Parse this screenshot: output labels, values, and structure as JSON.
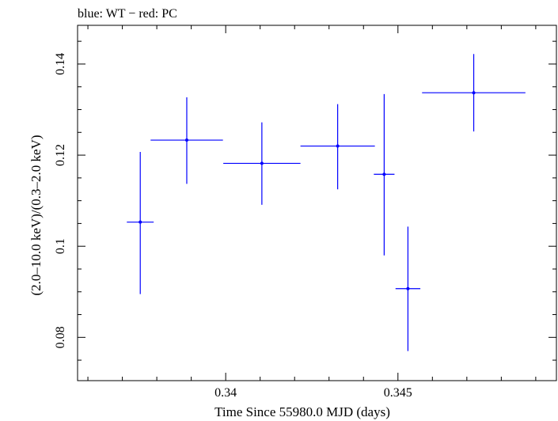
{
  "chart_data": {
    "type": "scatter",
    "title": "blue: WT − red: PC",
    "xlabel": "Time Since 55980.0 MJD (days)",
    "ylabel": "(2.0–10.0 keV)/(0.3–2.0 keV)",
    "xlim": [
      0.3357,
      0.3496
    ],
    "ylim": [
      0.0705,
      0.1485
    ],
    "x_ticks": [
      0.34,
      0.345
    ],
    "x_tick_labels": [
      "0.34",
      "0.345"
    ],
    "y_ticks": [
      0.08,
      0.1,
      0.12,
      0.14
    ],
    "y_tick_labels": [
      "0.08",
      "0.1",
      "0.12",
      "0.14"
    ],
    "grid": false,
    "series": [
      {
        "name": "WT",
        "color": "#0000ff",
        "points": [
          {
            "x": 0.33752,
            "xerr": 0.00039,
            "y": 0.1053,
            "ylo": 0.0895,
            "yhi": 0.1207
          },
          {
            "x": 0.33887,
            "xerr": 0.00105,
            "y": 0.1233,
            "ylo": 0.1137,
            "yhi": 0.1327
          },
          {
            "x": 0.34105,
            "xerr": 0.00112,
            "y": 0.1182,
            "ylo": 0.1091,
            "yhi": 0.1272
          },
          {
            "x": 0.34325,
            "xerr": 0.00108,
            "y": 0.122,
            "ylo": 0.1125,
            "yhi": 0.1312
          },
          {
            "x": 0.3446,
            "xerr": 0.0003,
            "y": 0.1158,
            "ylo": 0.098,
            "yhi": 0.1334
          },
          {
            "x": 0.34529,
            "xerr": 0.00036,
            "y": 0.0907,
            "ylo": 0.077,
            "yhi": 0.1043
          },
          {
            "x": 0.3472,
            "xerr": 0.0015,
            "y": 0.1337,
            "ylo": 0.1252,
            "yhi": 0.1422
          }
        ]
      }
    ]
  }
}
